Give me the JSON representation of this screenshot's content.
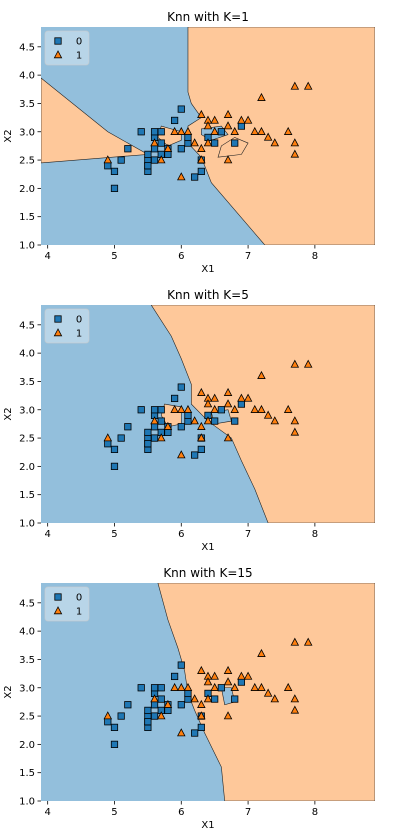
{
  "colors": {
    "region_0": "#93bfdc",
    "region_1": "#fec89a",
    "marker_0": "#1f77b4",
    "marker_1": "#ff7f0e"
  },
  "chart_data": [
    {
      "type": "scatter",
      "title": "Knn with K=1",
      "xlabel": "X1",
      "ylabel": "X2",
      "xlim": [
        3.9,
        8.9
      ],
      "ylim": [
        1.0,
        4.85
      ],
      "xticks": [
        "4",
        "5",
        "6",
        "7",
        "8"
      ],
      "yticks": [
        "1.0",
        "1.5",
        "2.0",
        "2.5",
        "3.0",
        "3.5",
        "4.0",
        "4.5"
      ],
      "legend_position": "top-left",
      "series": [
        {
          "name": "0",
          "marker": "square",
          "x": [
            4.9,
            5.0,
            5.0,
            5.1,
            5.2,
            5.4,
            5.5,
            5.5,
            5.5,
            5.5,
            5.5,
            5.6,
            5.6,
            5.6,
            5.6,
            5.7,
            5.7,
            5.7,
            5.8,
            5.8,
            5.9,
            6.0,
            6.0,
            6.1,
            6.1,
            6.2,
            6.3,
            6.3,
            6.4,
            6.5,
            6.6,
            6.8,
            6.9
          ],
          "y": [
            2.4,
            2.3,
            2.0,
            2.5,
            2.7,
            3.0,
            2.3,
            2.4,
            2.5,
            2.6,
            2.4,
            2.5,
            2.7,
            2.9,
            3.0,
            2.6,
            2.8,
            3.0,
            2.7,
            2.6,
            3.2,
            3.4,
            2.7,
            2.8,
            2.9,
            2.2,
            2.3,
            2.5,
            2.9,
            2.8,
            3.0,
            2.8,
            3.1
          ]
        },
        {
          "name": "1",
          "marker": "triangle",
          "x": [
            4.9,
            5.6,
            5.7,
            5.8,
            5.9,
            6.0,
            6.0,
            6.1,
            6.2,
            6.3,
            6.3,
            6.3,
            6.4,
            6.4,
            6.5,
            6.5,
            6.7,
            6.7,
            6.8,
            6.9,
            7.0,
            7.1,
            7.2,
            7.2,
            7.3,
            7.4,
            7.6,
            7.7,
            7.7,
            7.7,
            7.9,
            6.4,
            6.7
          ],
          "y": [
            2.5,
            2.8,
            2.5,
            2.7,
            3.0,
            2.2,
            3.0,
            3.0,
            2.8,
            3.3,
            2.7,
            2.5,
            3.2,
            2.8,
            3.0,
            3.2,
            3.3,
            3.1,
            3.0,
            3.2,
            3.2,
            3.0,
            3.6,
            3.0,
            2.9,
            2.8,
            3.0,
            3.8,
            2.6,
            2.8,
            3.8,
            3.1,
            2.5
          ]
        }
      ]
    },
    {
      "type": "scatter",
      "title": "Knn with K=5",
      "xlabel": "X1",
      "ylabel": "X2",
      "xlim": [
        3.9,
        8.9
      ],
      "ylim": [
        1.0,
        4.85
      ],
      "xticks": [
        "4",
        "5",
        "6",
        "7",
        "8"
      ],
      "yticks": [
        "1.0",
        "1.5",
        "2.0",
        "2.5",
        "3.0",
        "3.5",
        "4.0",
        "4.5"
      ],
      "legend_position": "top-left",
      "series": [
        {
          "name": "0",
          "marker": "square",
          "x": [
            4.9,
            5.0,
            5.0,
            5.1,
            5.2,
            5.4,
            5.5,
            5.5,
            5.5,
            5.5,
            5.5,
            5.6,
            5.6,
            5.6,
            5.6,
            5.7,
            5.7,
            5.7,
            5.8,
            5.8,
            5.9,
            6.0,
            6.0,
            6.1,
            6.1,
            6.2,
            6.3,
            6.3,
            6.4,
            6.5,
            6.6,
            6.8,
            6.9
          ],
          "y": [
            2.4,
            2.3,
            2.0,
            2.5,
            2.7,
            3.0,
            2.3,
            2.4,
            2.5,
            2.6,
            2.4,
            2.5,
            2.7,
            2.9,
            3.0,
            2.6,
            2.8,
            3.0,
            2.7,
            2.6,
            3.2,
            3.4,
            2.7,
            2.8,
            2.9,
            2.2,
            2.3,
            2.5,
            2.9,
            2.8,
            3.0,
            2.8,
            3.1
          ]
        },
        {
          "name": "1",
          "marker": "triangle",
          "x": [
            4.9,
            5.6,
            5.7,
            5.8,
            5.9,
            6.0,
            6.0,
            6.1,
            6.2,
            6.3,
            6.3,
            6.3,
            6.4,
            6.4,
            6.5,
            6.5,
            6.7,
            6.7,
            6.8,
            6.9,
            7.0,
            7.1,
            7.2,
            7.2,
            7.3,
            7.4,
            7.6,
            7.7,
            7.7,
            7.7,
            7.9,
            6.4,
            6.7
          ],
          "y": [
            2.5,
            2.8,
            2.5,
            2.7,
            3.0,
            2.2,
            3.0,
            3.0,
            2.8,
            3.3,
            2.7,
            2.5,
            3.2,
            2.8,
            3.0,
            3.2,
            3.3,
            3.1,
            3.0,
            3.2,
            3.2,
            3.0,
            3.6,
            3.0,
            2.9,
            2.8,
            3.0,
            3.8,
            2.6,
            2.8,
            3.8,
            3.1,
            2.5
          ]
        }
      ]
    },
    {
      "type": "scatter",
      "title": "Knn with K=15",
      "xlabel": "X1",
      "ylabel": "X2",
      "xlim": [
        3.9,
        8.9
      ],
      "ylim": [
        1.0,
        4.85
      ],
      "xticks": [
        "4",
        "5",
        "6",
        "7",
        "8"
      ],
      "yticks": [
        "1.0",
        "1.5",
        "2.0",
        "2.5",
        "3.0",
        "3.5",
        "4.0",
        "4.5"
      ],
      "legend_position": "top-left",
      "series": [
        {
          "name": "0",
          "marker": "square",
          "x": [
            4.9,
            5.0,
            5.0,
            5.1,
            5.2,
            5.4,
            5.5,
            5.5,
            5.5,
            5.5,
            5.5,
            5.6,
            5.6,
            5.6,
            5.6,
            5.7,
            5.7,
            5.7,
            5.8,
            5.8,
            5.9,
            6.0,
            6.0,
            6.1,
            6.1,
            6.2,
            6.3,
            6.3,
            6.4,
            6.5,
            6.6,
            6.8,
            6.9
          ],
          "y": [
            2.4,
            2.3,
            2.0,
            2.5,
            2.7,
            3.0,
            2.3,
            2.4,
            2.5,
            2.6,
            2.4,
            2.5,
            2.7,
            2.9,
            3.0,
            2.6,
            2.8,
            3.0,
            2.7,
            2.6,
            3.2,
            3.4,
            2.7,
            2.8,
            2.9,
            2.2,
            2.3,
            2.5,
            2.9,
            2.8,
            3.0,
            2.8,
            3.1
          ]
        },
        {
          "name": "1",
          "marker": "triangle",
          "x": [
            4.9,
            5.6,
            5.7,
            5.8,
            5.9,
            6.0,
            6.0,
            6.1,
            6.2,
            6.3,
            6.3,
            6.3,
            6.4,
            6.4,
            6.5,
            6.5,
            6.7,
            6.7,
            6.8,
            6.9,
            7.0,
            7.1,
            7.2,
            7.2,
            7.3,
            7.4,
            7.6,
            7.7,
            7.7,
            7.7,
            7.9,
            6.4,
            6.7
          ],
          "y": [
            2.5,
            2.8,
            2.5,
            2.7,
            3.0,
            2.2,
            3.0,
            3.0,
            2.8,
            3.3,
            2.7,
            2.5,
            3.2,
            2.8,
            3.0,
            3.2,
            3.3,
            3.1,
            3.0,
            3.2,
            3.2,
            3.0,
            3.6,
            3.0,
            2.9,
            2.8,
            3.0,
            3.8,
            2.6,
            2.8,
            3.8,
            3.1,
            2.5
          ]
        }
      ]
    }
  ]
}
